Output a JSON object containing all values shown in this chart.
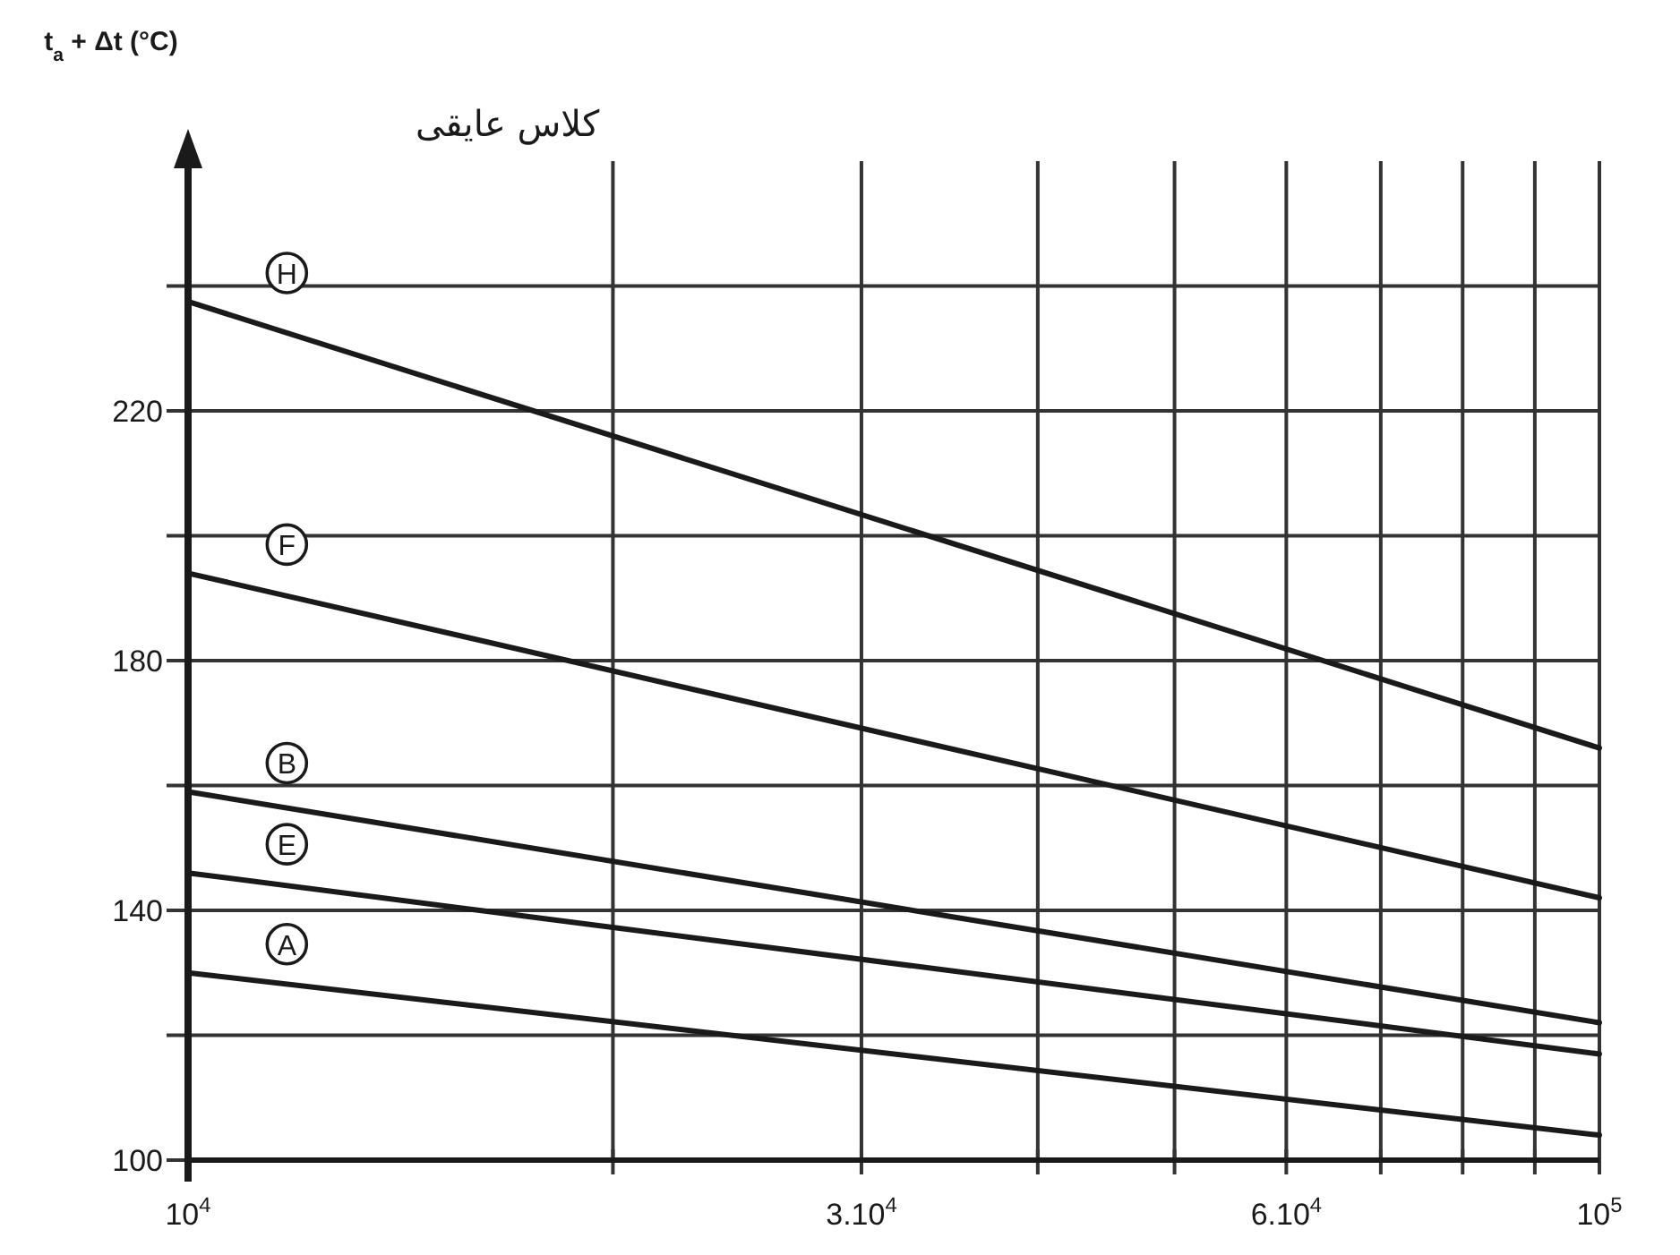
{
  "chart_data": {
    "type": "line",
    "ylabel": "t$_{a}$ + Δt (°C)",
    "x": [
      10000,
      100000
    ],
    "series": [
      {
        "name": "H",
        "color": "#1a1a1a",
        "values": [
          237.5,
          166
        ]
      },
      {
        "name": "F",
        "color": "#1a1a1a",
        "values": [
          194,
          142
        ]
      },
      {
        "name": "B",
        "color": "#1a1a1a",
        "values": [
          159,
          122
        ]
      },
      {
        "name": "E",
        "color": "#1a1a1a",
        "values": [
          146,
          117
        ]
      },
      {
        "name": "A",
        "color": "#1a1a1a",
        "values": [
          130,
          104
        ]
      }
    ],
    "log": "x",
    "grid": true,
    "marker": "none",
    "xlim": [
      10000,
      100000
    ],
    "xticks": [
      {
        "value": 10000,
        "label": "10$^{4}$"
      },
      {
        "value": 20000,
        "label": null
      },
      {
        "value": 30000,
        "label": "3.10$^{4}$"
      },
      {
        "value": 40000,
        "label": null
      },
      {
        "value": 50000,
        "label": null
      },
      {
        "value": 60000,
        "label": "6.10$^{4}$"
      },
      {
        "value": 70000,
        "label": null
      },
      {
        "value": 80000,
        "label": null
      },
      {
        "value": 90000,
        "label": null
      },
      {
        "value": 100000,
        "label": "10$^{5}$"
      }
    ],
    "ylim": [
      100,
      260
    ],
    "yticks": [
      100,
      {
        "value": 120,
        "label": null
      },
      140,
      {
        "value": 160,
        "label": null
      },
      180,
      {
        "value": 200,
        "label": null
      },
      220,
      {
        "value": 240,
        "label": null
      }
    ],
    "annotations": [
      "کلاس عایقی"
    ]
  }
}
